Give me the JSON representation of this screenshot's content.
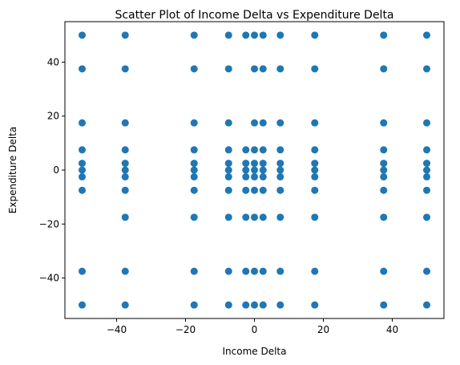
{
  "chart_data": {
    "type": "scatter",
    "title": "Scatter Plot of Income Delta vs Expenditure Delta",
    "xlabel": "Income Delta",
    "ylabel": "Expenditure Delta",
    "xlim": [
      -55,
      55
    ],
    "ylim": [
      -55,
      55
    ],
    "xticks": [
      -40,
      -20,
      0,
      20,
      40
    ],
    "yticks": [
      -40,
      -20,
      0,
      20,
      40
    ],
    "grid": false,
    "marker_color": "#1f77b4",
    "points": [
      [
        -50,
        50
      ],
      [
        -50,
        37.5
      ],
      [
        -50,
        17.5
      ],
      [
        -50,
        7.5
      ],
      [
        -50,
        2.5
      ],
      [
        -50,
        0
      ],
      [
        -50,
        -2.5
      ],
      [
        -50,
        -7.5
      ],
      [
        -50,
        -37.5
      ],
      [
        -50,
        -50
      ],
      [
        -37.5,
        50
      ],
      [
        -37.5,
        37.5
      ],
      [
        -37.5,
        17.5
      ],
      [
        -37.5,
        7.5
      ],
      [
        -37.5,
        2.5
      ],
      [
        -37.5,
        0
      ],
      [
        -37.5,
        -2.5
      ],
      [
        -37.5,
        -7.5
      ],
      [
        -37.5,
        -17.5
      ],
      [
        -37.5,
        -37.5
      ],
      [
        -37.5,
        -50
      ],
      [
        -17.5,
        50
      ],
      [
        -17.5,
        37.5
      ],
      [
        -17.5,
        17.5
      ],
      [
        -17.5,
        7.5
      ],
      [
        -17.5,
        2.5
      ],
      [
        -17.5,
        0
      ],
      [
        -17.5,
        -2.5
      ],
      [
        -17.5,
        -7.5
      ],
      [
        -17.5,
        -17.5
      ],
      [
        -17.5,
        -37.5
      ],
      [
        -17.5,
        -50
      ],
      [
        -7.5,
        50
      ],
      [
        -7.5,
        37.5
      ],
      [
        -7.5,
        17.5
      ],
      [
        -7.5,
        7.5
      ],
      [
        -7.5,
        2.5
      ],
      [
        -7.5,
        0
      ],
      [
        -7.5,
        -2.5
      ],
      [
        -7.5,
        -7.5
      ],
      [
        -7.5,
        -17.5
      ],
      [
        -7.5,
        -37.5
      ],
      [
        -7.5,
        -50
      ],
      [
        -2.5,
        50
      ],
      [
        -2.5,
        7.5
      ],
      [
        -2.5,
        2.5
      ],
      [
        -2.5,
        0
      ],
      [
        -2.5,
        -2.5
      ],
      [
        -2.5,
        -7.5
      ],
      [
        -2.5,
        -17.5
      ],
      [
        -2.5,
        -37.5
      ],
      [
        -2.5,
        -50
      ],
      [
        0,
        50
      ],
      [
        0,
        37.5
      ],
      [
        0,
        17.5
      ],
      [
        0,
        7.5
      ],
      [
        0,
        2.5
      ],
      [
        0,
        0
      ],
      [
        0,
        -2.5
      ],
      [
        0,
        -7.5
      ],
      [
        0,
        -17.5
      ],
      [
        0,
        -37.5
      ],
      [
        0,
        -50
      ],
      [
        2.5,
        50
      ],
      [
        2.5,
        37.5
      ],
      [
        2.5,
        17.5
      ],
      [
        2.5,
        7.5
      ],
      [
        2.5,
        2.5
      ],
      [
        2.5,
        0
      ],
      [
        2.5,
        -2.5
      ],
      [
        2.5,
        -7.5
      ],
      [
        2.5,
        -17.5
      ],
      [
        2.5,
        -37.5
      ],
      [
        2.5,
        -50
      ],
      [
        7.5,
        50
      ],
      [
        7.5,
        37.5
      ],
      [
        7.5,
        17.5
      ],
      [
        7.5,
        7.5
      ],
      [
        7.5,
        2.5
      ],
      [
        7.5,
        0
      ],
      [
        7.5,
        -2.5
      ],
      [
        7.5,
        -7.5
      ],
      [
        7.5,
        -17.5
      ],
      [
        7.5,
        -37.5
      ],
      [
        7.5,
        -50
      ],
      [
        17.5,
        50
      ],
      [
        17.5,
        37.5
      ],
      [
        17.5,
        17.5
      ],
      [
        17.5,
        7.5
      ],
      [
        17.5,
        2.5
      ],
      [
        17.5,
        0
      ],
      [
        17.5,
        -2.5
      ],
      [
        17.5,
        -7.5
      ],
      [
        17.5,
        -17.5
      ],
      [
        17.5,
        -37.5
      ],
      [
        17.5,
        -50
      ],
      [
        37.5,
        50
      ],
      [
        37.5,
        37.5
      ],
      [
        37.5,
        17.5
      ],
      [
        37.5,
        7.5
      ],
      [
        37.5,
        2.5
      ],
      [
        37.5,
        0
      ],
      [
        37.5,
        -2.5
      ],
      [
        37.5,
        -7.5
      ],
      [
        37.5,
        -17.5
      ],
      [
        37.5,
        -37.5
      ],
      [
        37.5,
        -50
      ],
      [
        50,
        50
      ],
      [
        50,
        37.5
      ],
      [
        50,
        17.5
      ],
      [
        50,
        7.5
      ],
      [
        50,
        2.5
      ],
      [
        50,
        0
      ],
      [
        50,
        -2.5
      ],
      [
        50,
        -7.5
      ],
      [
        50,
        -17.5
      ],
      [
        50,
        -37.5
      ],
      [
        50,
        -50
      ]
    ]
  }
}
